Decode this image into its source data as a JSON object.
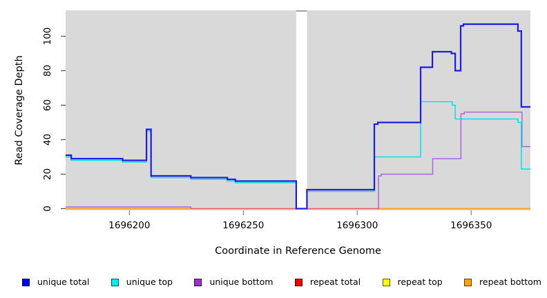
{
  "chart_data": {
    "type": "line",
    "interpolation": "step-after",
    "title": "",
    "xlabel": "Coordinate in Reference Genome",
    "ylabel": "Read Coverage Depth",
    "xlim": [
      1696172,
      1696376
    ],
    "ylim": [
      -1,
      115
    ],
    "x_ticks": [
      1696200,
      1696250,
      1696300,
      1696350
    ],
    "y_ticks": [
      0,
      20,
      40,
      60,
      80,
      100
    ],
    "plot_bg": "#D9D9D9",
    "grid": false,
    "legend_position": "bottom",
    "gap_region": {
      "x_start": 1696273.2,
      "x_end": 1696277.9,
      "fill": "#FFFFFF",
      "cap_color": "#999999"
    },
    "draw_order": [
      4,
      3,
      5,
      2,
      1,
      0
    ],
    "series": [
      {
        "label": "unique total",
        "color": "#1C1CE8",
        "legend_color": "#0000EE",
        "line_width": 2.2,
        "segments": [
          [
            [
              1696172,
              31
            ],
            [
              1696174.5,
              29
            ],
            [
              1696197,
              28
            ],
            [
              1696207.5,
              46
            ],
            [
              1696209.5,
              19
            ],
            [
              1696227,
              18
            ],
            [
              1696243,
              17
            ],
            [
              1696246.5,
              16
            ],
            [
              1696273.2,
              0
            ],
            [
              1696277.9,
              11
            ],
            [
              1696307.5,
              49
            ],
            [
              1696309,
              50
            ],
            [
              1696327.8,
              82
            ],
            [
              1696333,
              91
            ],
            [
              1696341.3,
              90
            ],
            [
              1696343,
              80
            ],
            [
              1696345.4,
              106
            ],
            [
              1696346.6,
              107
            ],
            [
              1696370.5,
              103
            ],
            [
              1696372,
              59
            ],
            [
              1696376,
              59
            ]
          ]
        ]
      },
      {
        "label": "unique top",
        "color": "#00E0EE",
        "legend_color": "#00EEEE",
        "line_width": 1.5,
        "segments": [
          [
            [
              1696172,
              30
            ],
            [
              1696174.5,
              28
            ],
            [
              1696197,
              27
            ],
            [
              1696207.5,
              45
            ],
            [
              1696209.5,
              18
            ],
            [
              1696227,
              17
            ],
            [
              1696243,
              16
            ],
            [
              1696246.5,
              15
            ],
            [
              1696273.2,
              0
            ],
            [
              1696277.9,
              10
            ],
            [
              1696307.5,
              30
            ],
            [
              1696327.8,
              62
            ],
            [
              1696341.7,
              60
            ],
            [
              1696343,
              52
            ],
            [
              1696370.5,
              50
            ],
            [
              1696372,
              23
            ],
            [
              1696376,
              23
            ]
          ]
        ]
      },
      {
        "label": "unique bottom",
        "color": "#AA66DD",
        "legend_color": "#9933CC",
        "line_width": 1.5,
        "segments": [
          [
            [
              1696172,
              1
            ],
            [
              1696227,
              0
            ]
          ],
          [
            [
              1696309,
              0
            ],
            [
              1696309.3,
              19
            ],
            [
              1696310.5,
              20
            ],
            [
              1696333.1,
              29
            ],
            [
              1696345.5,
              55
            ],
            [
              1696347,
              56
            ],
            [
              1696372.3,
              36
            ],
            [
              1696376,
              36
            ]
          ]
        ]
      },
      {
        "label": "repeat total",
        "color": "#E8506E",
        "legend_color": "#EE0000",
        "line_width": 1.5,
        "segments": [
          [
            [
              1696172,
              0
            ],
            [
              1696376,
              0
            ]
          ]
        ]
      },
      {
        "label": "repeat top",
        "color": "#FFFF00",
        "legend_color": "#FFFF00",
        "line_width": 1.5,
        "segments": [
          [
            [
              1696172,
              0
            ],
            [
              1696376,
              0
            ]
          ]
        ]
      },
      {
        "label": "repeat bottom",
        "color": "#FF9E1B",
        "legend_color": "#FFA500",
        "line_width": 1.5,
        "segments": [
          [
            [
              1696172,
              0
            ],
            [
              1696227,
              0
            ]
          ],
          [
            [
              1696309,
              0
            ],
            [
              1696376,
              0
            ]
          ]
        ]
      }
    ]
  }
}
